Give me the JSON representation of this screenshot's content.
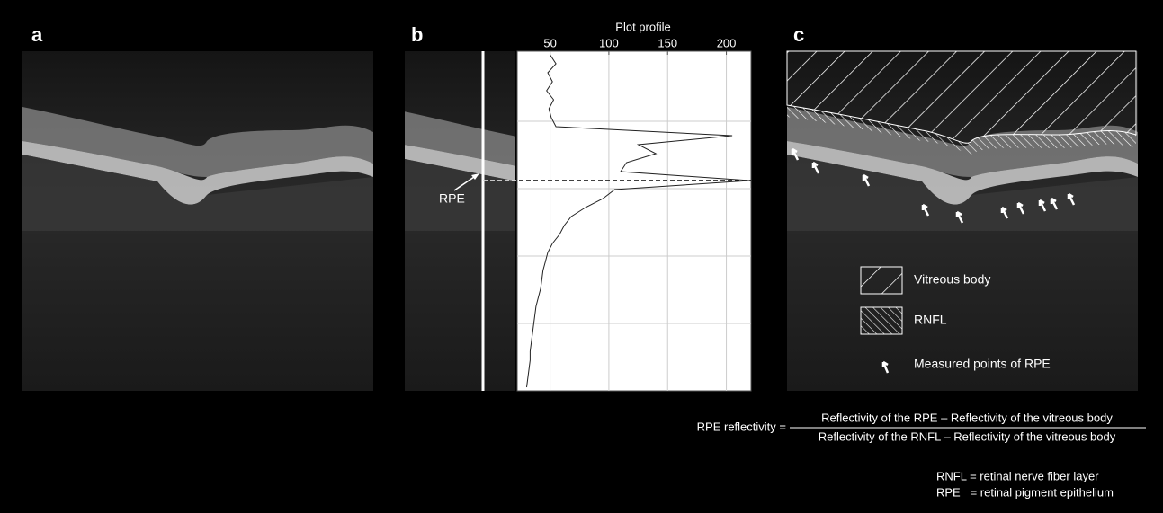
{
  "panels": {
    "a": "a",
    "b": "b",
    "c": "c"
  },
  "rpe_label": "RPE",
  "chart_data": {
    "type": "line",
    "title": "Plot profile",
    "values": [
      50,
      55,
      48,
      52,
      47,
      53,
      49,
      51,
      55,
      205,
      125,
      140,
      115,
      110,
      220,
      105,
      95,
      80,
      68,
      62,
      58,
      52,
      48,
      46,
      44,
      43,
      42,
      40,
      38,
      37,
      36,
      35,
      34,
      33,
      33,
      32,
      31,
      30
    ],
    "color": "#222222",
    "xlim": [
      22,
      221
    ],
    "xticks": [
      50,
      100,
      150,
      200
    ],
    "grid": true
  },
  "legend": {
    "vitreous": "Vitreous body",
    "rnfl": "RNFL",
    "points": "Measured points of RPE"
  },
  "formula": {
    "lhs": "RPE reflectivity =",
    "numerator": "Reflectivity of the RPE – Reflectivity of the vitreous body",
    "denominator": "Reflectivity of the RNFL – Reflectivity of the vitreous body"
  },
  "notes": [
    "RNFL = retinal nerve fiber layer",
    "RPE   = retinal pigment epithelium"
  ]
}
